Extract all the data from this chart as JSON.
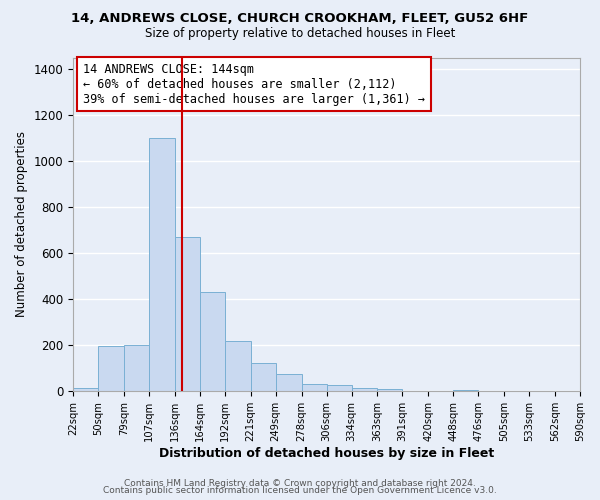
{
  "title1": "14, ANDREWS CLOSE, CHURCH CROOKHAM, FLEET, GU52 6HF",
  "title2": "Size of property relative to detached houses in Fleet",
  "xlabel": "Distribution of detached houses by size in Fleet",
  "ylabel": "Number of detached properties",
  "bar_color": "#c9d9f0",
  "bar_edge_color": "#7ab0d4",
  "bg_color": "#e8eef8",
  "grid_color": "#ffffff",
  "vline_x": 144,
  "vline_color": "#cc0000",
  "annotation_title": "14 ANDREWS CLOSE: 144sqm",
  "annotation_line1": "← 60% of detached houses are smaller (2,112)",
  "annotation_line2": "39% of semi-detached houses are larger (1,361) →",
  "annotation_box_edge": "#cc0000",
  "bin_edges": [
    22,
    50,
    79,
    107,
    136,
    164,
    192,
    221,
    249,
    278,
    306,
    334,
    363,
    391,
    420,
    448,
    476,
    505,
    533,
    562,
    590
  ],
  "bar_heights": [
    15,
    195,
    200,
    1100,
    670,
    430,
    220,
    125,
    75,
    32,
    28,
    15,
    10,
    0,
    0,
    8,
    0,
    0,
    0,
    0
  ],
  "ylim": [
    0,
    1450
  ],
  "yticks": [
    0,
    200,
    400,
    600,
    800,
    1000,
    1200,
    1400
  ],
  "footer1": "Contains HM Land Registry data © Crown copyright and database right 2024.",
  "footer2": "Contains public sector information licensed under the Open Government Licence v3.0."
}
